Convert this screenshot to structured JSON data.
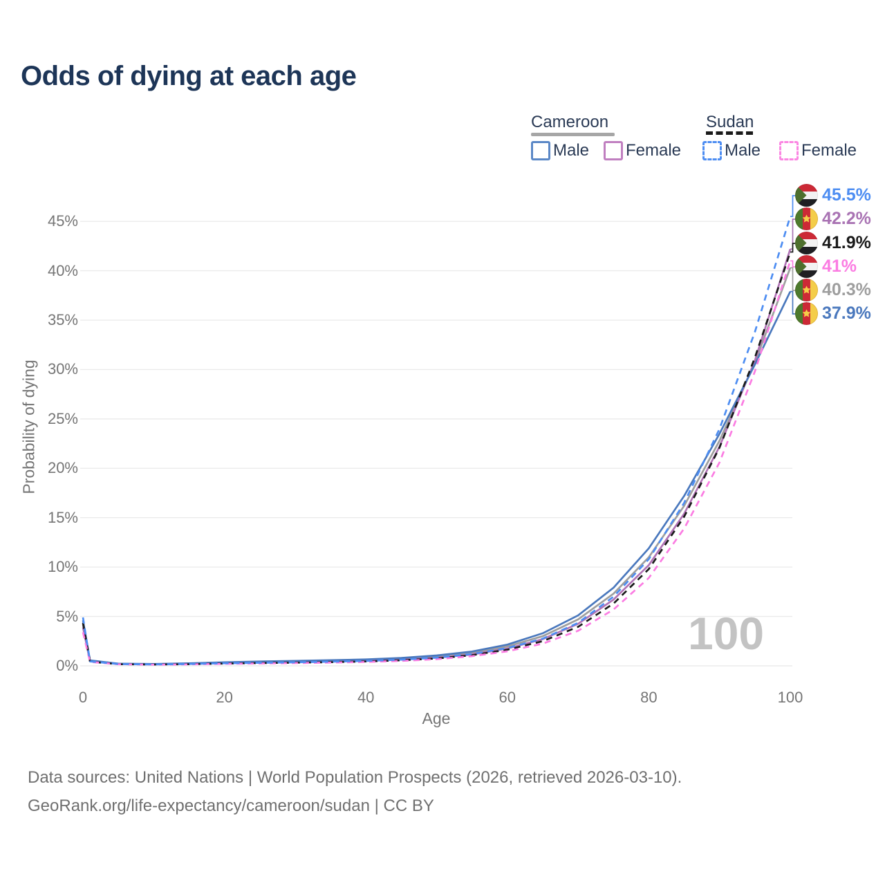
{
  "title": "Odds of dying at each age",
  "legend": {
    "groups": [
      {
        "label": "Cameroon",
        "line_style": "solid",
        "line_color": "#a6a6a6"
      },
      {
        "label": "Sudan",
        "line_style": "dashed",
        "line_color": "#1a1a1a"
      }
    ],
    "items": [
      {
        "group": "Cameroon",
        "label": "Male",
        "swatch_color": "#5a87c6",
        "swatch_style": "solid"
      },
      {
        "group": "Cameroon",
        "label": "Female",
        "swatch_color": "#c07fc0",
        "swatch_style": "solid"
      },
      {
        "group": "Sudan",
        "label": "Male",
        "swatch_color": "#4d8df2",
        "swatch_style": "dashed"
      },
      {
        "group": "Sudan",
        "label": "Female",
        "swatch_color": "#fb86e2",
        "swatch_style": "dashed"
      }
    ]
  },
  "watermark": "100",
  "footer": {
    "line1": "Data sources: United Nations | World Population Prospects (2026, retrieved 2026-03-10).",
    "line2": "GeoRank.org/life-expectancy/cameroon/sudan | CC BY"
  },
  "chart_data": {
    "type": "line",
    "title": "Odds of dying at each age",
    "xlabel": "Age",
    "ylabel": "Probability of dying",
    "xlim": [
      0,
      100
    ],
    "ylim": [
      0,
      47
    ],
    "grid": "horizontal-only",
    "legend_position": "top-right",
    "x_ticks": [
      0,
      20,
      40,
      60,
      80,
      100
    ],
    "y_ticks": [
      0,
      5,
      10,
      15,
      20,
      25,
      30,
      35,
      40,
      45
    ],
    "y_tick_suffix": "%",
    "x_ages": [
      0,
      1,
      5,
      10,
      15,
      20,
      25,
      30,
      35,
      40,
      45,
      50,
      55,
      60,
      65,
      70,
      75,
      80,
      85,
      90,
      95,
      100
    ],
    "series": [
      {
        "name": "Cameroon Total",
        "color": "#9e9e9e",
        "dashed": false,
        "values": [
          4.2,
          0.5,
          0.2,
          0.16,
          0.23,
          0.31,
          0.38,
          0.44,
          0.5,
          0.58,
          0.71,
          0.93,
          1.3,
          1.95,
          3.0,
          4.7,
          7.3,
          11.0,
          16.2,
          22.8,
          30.7,
          40.3
        ]
      },
      {
        "name": "Cameroon Female",
        "color": "#b072b5",
        "dashed": false,
        "values": [
          3.9,
          0.47,
          0.19,
          0.15,
          0.21,
          0.27,
          0.32,
          0.37,
          0.43,
          0.5,
          0.62,
          0.82,
          1.15,
          1.75,
          2.7,
          4.25,
          6.7,
          10.2,
          15.4,
          22.2,
          30.9,
          42.2
        ]
      },
      {
        "name": "Cameroon Male",
        "color": "#4a78bd",
        "dashed": false,
        "values": [
          4.6,
          0.55,
          0.22,
          0.18,
          0.26,
          0.36,
          0.44,
          0.5,
          0.57,
          0.65,
          0.8,
          1.05,
          1.45,
          2.15,
          3.3,
          5.1,
          7.9,
          11.9,
          17.2,
          23.5,
          30.5,
          37.9
        ]
      },
      {
        "name": "Sudan Total",
        "color": "#1a1a1a",
        "dashed": true,
        "values": [
          4.35,
          0.42,
          0.17,
          0.13,
          0.17,
          0.23,
          0.28,
          0.32,
          0.37,
          0.44,
          0.56,
          0.75,
          1.08,
          1.63,
          2.5,
          3.95,
          6.3,
          9.8,
          15.1,
          22.1,
          31.2,
          41.9
        ]
      },
      {
        "name": "Sudan Female",
        "color": "#fb7ce2",
        "dashed": true,
        "values": [
          3.4,
          0.4,
          0.16,
          0.12,
          0.15,
          0.2,
          0.24,
          0.28,
          0.33,
          0.39,
          0.5,
          0.67,
          0.97,
          1.47,
          2.25,
          3.55,
          5.7,
          8.9,
          13.9,
          20.6,
          29.8,
          41.0
        ]
      },
      {
        "name": "Sudan Male",
        "color": "#4d8df2",
        "dashed": true,
        "values": [
          4.9,
          0.45,
          0.18,
          0.14,
          0.19,
          0.26,
          0.31,
          0.36,
          0.42,
          0.5,
          0.62,
          0.83,
          1.2,
          1.8,
          2.75,
          4.35,
          7.0,
          10.8,
          16.5,
          24.0,
          33.8,
          45.5
        ]
      }
    ],
    "end_labels": [
      {
        "text": "45.5%",
        "flag": "sudan",
        "series": "Sudan Male",
        "color": "#4d8df2"
      },
      {
        "text": "42.2%",
        "flag": "cameroon",
        "series": "Cameroon Female",
        "color": "#a973b3"
      },
      {
        "text": "41.9%",
        "flag": "sudan",
        "series": "Sudan Total",
        "color": "#1a1a1a"
      },
      {
        "text": "41%",
        "flag": "sudan",
        "series": "Sudan Female",
        "color": "#fb7ce2"
      },
      {
        "text": "40.3%",
        "flag": "cameroon",
        "series": "Cameroon Total",
        "color": "#9e9e9e"
      },
      {
        "text": "37.9%",
        "flag": "cameroon",
        "series": "Cameroon Male",
        "color": "#4a78bd"
      }
    ]
  }
}
